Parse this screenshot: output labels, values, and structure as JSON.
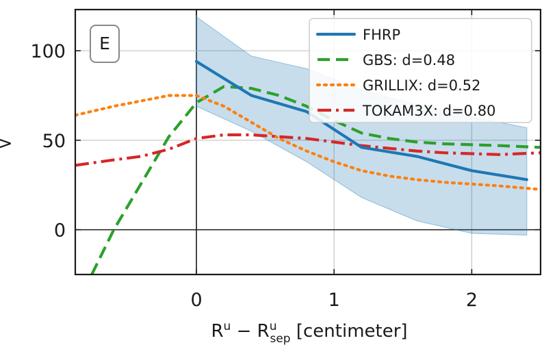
{
  "chart_data": {
    "type": "line",
    "panel_label": "E",
    "xlabel": {
      "base": "R",
      "sup1": "u",
      "minus": " − R",
      "sub": "sep",
      "sup2": "u",
      "unit": " [centimeter]"
    },
    "ylabel_fragment": ">",
    "xlim": [
      -0.88,
      2.5
    ],
    "ylim": [
      -25,
      123
    ],
    "x_ticks": [
      0,
      1,
      2
    ],
    "x_tick_labels": [
      "0",
      "1",
      "2"
    ],
    "y_ticks": [
      0,
      50,
      100
    ],
    "y_tick_labels": [
      "0",
      "50",
      "100"
    ],
    "grid": true,
    "legend_position": "top-right",
    "band": {
      "x": [
        0,
        0.4,
        0.8,
        1.2,
        1.6,
        2.0,
        2.4
      ],
      "upper": [
        119,
        97,
        90,
        78,
        70,
        63,
        57
      ],
      "lower": [
        69,
        55,
        38,
        18,
        5,
        -2,
        -3
      ]
    },
    "series": [
      {
        "name": "FHRP",
        "color": "#1f77b4",
        "dash": "solid",
        "x": [
          0,
          0.4,
          0.8,
          1.2,
          1.6,
          2.0,
          2.4
        ],
        "y": [
          94,
          75,
          66,
          46,
          41,
          33,
          28
        ]
      },
      {
        "name": "GBS: d=0.48",
        "color": "#2ca02c",
        "dash": "dashed",
        "x": [
          -0.76,
          -0.6,
          -0.4,
          -0.2,
          0,
          0.2,
          0.4,
          0.6,
          0.8,
          1.0,
          1.2,
          1.4,
          1.6,
          1.8,
          2.0,
          2.2,
          2.5
        ],
        "y": [
          -25,
          0,
          26,
          52,
          71,
          80,
          79,
          75,
          69,
          61,
          54,
          51,
          49,
          48,
          47.5,
          47,
          46
        ]
      },
      {
        "name": "GRILLIX: d=0.52",
        "color": "#ff7f0e",
        "dash": "dotted",
        "x": [
          -0.88,
          -0.6,
          -0.4,
          -0.2,
          0,
          0.2,
          0.4,
          0.6,
          0.8,
          1.0,
          1.2,
          1.4,
          1.6,
          1.8,
          2.0,
          2.2,
          2.5
        ],
        "y": [
          64,
          69,
          72,
          75,
          75,
          69,
          60,
          51,
          44,
          38,
          33,
          30,
          28,
          26.5,
          25.5,
          24.5,
          22.5
        ]
      },
      {
        "name": "TOKAM3X: d=0.80",
        "color": "#d62728",
        "dash": "dashdot",
        "x": [
          -0.88,
          -0.6,
          -0.4,
          -0.2,
          0,
          0.2,
          0.4,
          0.6,
          0.8,
          1.0,
          1.2,
          1.4,
          1.6,
          1.8,
          2.0,
          2.2,
          2.5
        ],
        "y": [
          36,
          39,
          41,
          45,
          51,
          53,
          53,
          52,
          51,
          49,
          47,
          45.5,
          44,
          43,
          42.5,
          42,
          43
        ]
      }
    ]
  }
}
